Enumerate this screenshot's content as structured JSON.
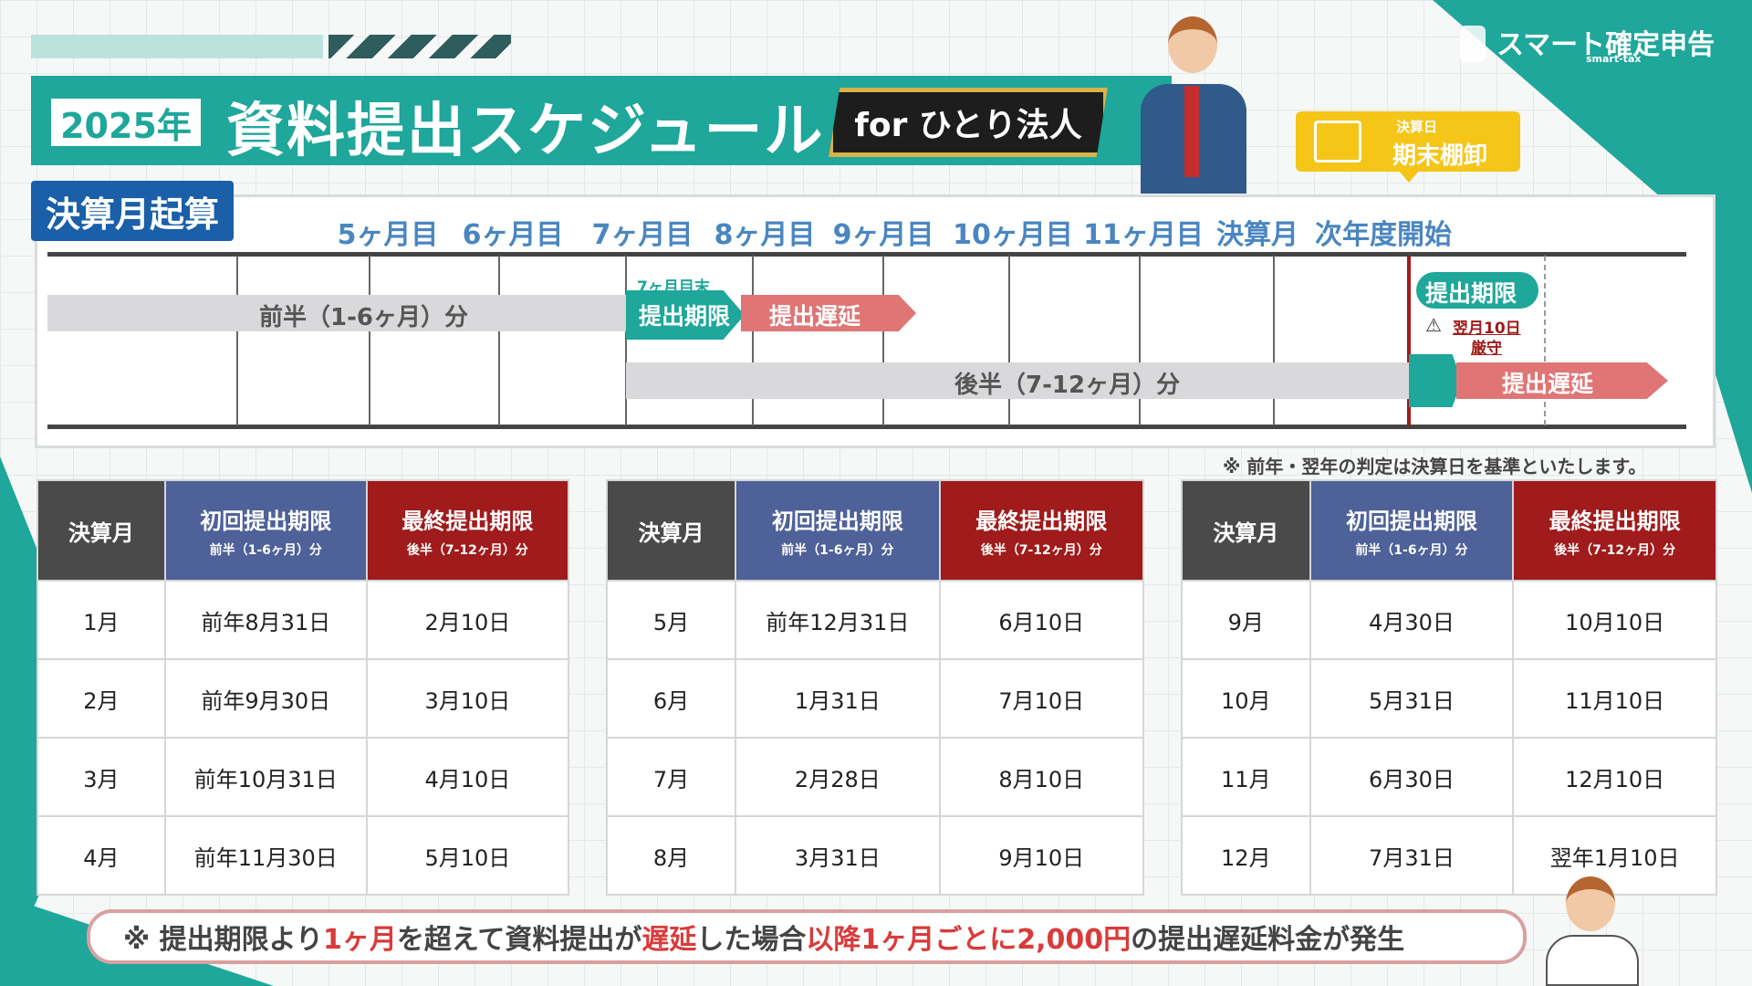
{
  "header": {
    "year_badge": "2025年",
    "title": "資料提出スケジュール",
    "for_badge": "for ひとり法人",
    "logo_text": "スマート確定申告",
    "logo_sub": "smart-tax",
    "callout_small": "決算日",
    "callout_main": "期末棚卸"
  },
  "timeline": {
    "badge": "決算月起算",
    "months": [
      "5ヶ月目",
      "6ヶ月目",
      "7ヶ月目",
      "8ヶ月目",
      "9ヶ月目",
      "10ヶ月目",
      "11ヶ月目",
      "決算月",
      "次年度開始"
    ],
    "first_half_label": "前半（1-6ヶ月）分",
    "second_half_label": "後半（7-12ヶ月）分",
    "month7_end": "7ヶ月目末",
    "deadline_label": "提出期限",
    "delay_label": "提出遅延",
    "deadline_label2": "提出期限",
    "strict_date": "翌月10日",
    "strict_word": "厳守",
    "delay_label2": "提出遅延"
  },
  "note_top": "※ 前年・翌年の判定は決算日を基準といたします。",
  "table_headers": {
    "month": "決算月",
    "first": "初回提出期限",
    "first_sub": "前半（1-6ヶ月）分",
    "final": "最終提出期限",
    "final_sub": "後半（7-12ヶ月）分"
  },
  "tables": [
    {
      "rows": [
        {
          "month": "1月",
          "first": "前年8月31日",
          "final": "2月10日"
        },
        {
          "month": "2月",
          "first": "前年9月30日",
          "final": "3月10日"
        },
        {
          "month": "3月",
          "first": "前年10月31日",
          "final": "4月10日"
        },
        {
          "month": "4月",
          "first": "前年11月30日",
          "final": "5月10日"
        }
      ]
    },
    {
      "rows": [
        {
          "month": "5月",
          "first": "前年12月31日",
          "final": "6月10日"
        },
        {
          "month": "6月",
          "first": "1月31日",
          "final": "7月10日"
        },
        {
          "month": "7月",
          "first": "2月28日",
          "final": "8月10日"
        },
        {
          "month": "8月",
          "first": "3月31日",
          "final": "9月10日"
        }
      ]
    },
    {
      "rows": [
        {
          "month": "9月",
          "first": "4月30日",
          "final": "10月10日"
        },
        {
          "month": "10月",
          "first": "5月31日",
          "final": "11月10日"
        },
        {
          "month": "11月",
          "first": "6月30日",
          "final": "12月10日"
        },
        {
          "month": "12月",
          "first": "7月31日",
          "final": "翌年1月10日"
        }
      ]
    }
  ],
  "footer": {
    "p1": "※ 提出期限より",
    "p2": "1ヶ月",
    "p3": "を超えて資料提出が",
    "p4": "遅延",
    "p5": "した場合",
    "p6": "以降1ヶ月ごとに2,000円",
    "p7": "の提出遅延料金が発生"
  },
  "colors": {
    "teal": "#1ea79a",
    "navy": "#1a5fa8",
    "red": "#a01b1b",
    "gold": "#f5c518"
  }
}
